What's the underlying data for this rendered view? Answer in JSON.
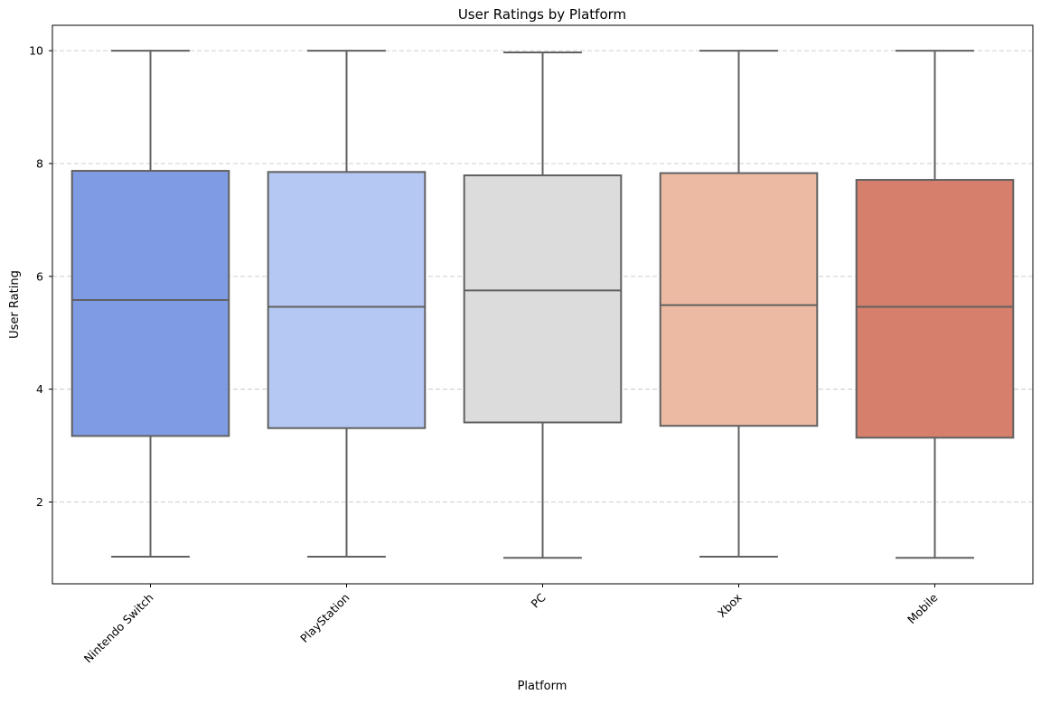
{
  "chart_data": {
    "type": "box",
    "title": "User Ratings by Platform",
    "xlabel": "Platform",
    "ylabel": "User Rating",
    "categories": [
      "Nintendo Switch",
      "PlayStation",
      "PC",
      "Xbox",
      "Mobile"
    ],
    "colors": [
      "#7f9be4",
      "#b4c8f3",
      "#dcdcdc",
      "#ecbaa3",
      "#d67f6c"
    ],
    "box_stroke": "#616161",
    "boxes": [
      {
        "category": "Nintendo Switch",
        "min": 1.03,
        "q1": 3.17,
        "median": 5.58,
        "q3": 7.87,
        "max": 10.0
      },
      {
        "category": "PlayStation",
        "min": 1.03,
        "q1": 3.31,
        "median": 5.46,
        "q3": 7.85,
        "max": 10.0
      },
      {
        "category": "PC",
        "min": 1.01,
        "q1": 3.41,
        "median": 5.75,
        "q3": 7.79,
        "max": 9.97
      },
      {
        "category": "Xbox",
        "min": 1.03,
        "q1": 3.35,
        "median": 5.49,
        "q3": 7.83,
        "max": 10.0
      },
      {
        "category": "Mobile",
        "min": 1.01,
        "q1": 3.14,
        "median": 5.46,
        "q3": 7.71,
        "max": 10.0
      }
    ],
    "yticks": [
      2,
      4,
      6,
      8,
      10
    ],
    "ylim": [
      0.55,
      10.45
    ],
    "grid": {
      "axis": "y",
      "style": "dashed",
      "color": "#c8c8c8"
    },
    "xtick_rotation": -45
  }
}
